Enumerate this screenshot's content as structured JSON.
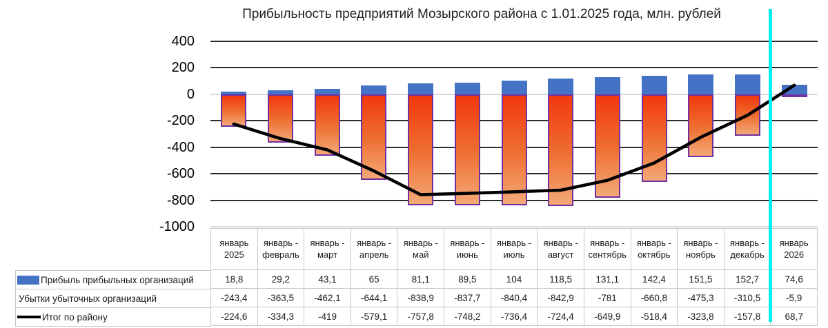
{
  "chart_data": {
    "type": "bar",
    "title": "Прибыльность предприятий Мозырского района с 1.01.2025 года, млн. рублей",
    "categories": [
      "январь 2025",
      "январь - февраль",
      "январь - март",
      "январь - апрель",
      "январь - май",
      "январь - июнь",
      "январь - июль",
      "январь - август",
      "январь - сентябрь",
      "январь - октябрь",
      "январь - ноябрь",
      "январь - декабрь",
      "январь 2026"
    ],
    "series": [
      {
        "name": "Прибыль прибыльных организаций",
        "type": "bar",
        "color": "#4472C4",
        "values": [
          18.8,
          29.2,
          43.1,
          65,
          81.1,
          89.5,
          104,
          118.5,
          131.1,
          142.4,
          151.5,
          152.7,
          74.6
        ]
      },
      {
        "name": "Убытки убыточных организаций",
        "type": "bar",
        "gradient_top": "#F2380C",
        "gradient_bottom": "#F3A877",
        "border_color": "#7030A0",
        "values": [
          -243.4,
          -363.5,
          -462.1,
          -644.1,
          -838.9,
          -837.7,
          -840.4,
          -842.9,
          -781,
          -660.8,
          -475.3,
          -310.5,
          -5.9
        ]
      },
      {
        "name": "Итог по району",
        "type": "line",
        "color": "#000000",
        "values": [
          -224.6,
          -334.3,
          -419,
          -579.1,
          -757.8,
          -748.2,
          -736.4,
          -724.4,
          -649.9,
          -518.4,
          -323.8,
          -157.8,
          68.7
        ]
      }
    ],
    "y_axis": {
      "max": 400,
      "min": -1000,
      "ticks": [
        400,
        200,
        0,
        -200,
        -400,
        -600,
        -800,
        -1000
      ]
    },
    "grid": "on",
    "gridline_color": "#2b2b2b",
    "zero_line_color": "#d9d9d9",
    "legend_position": "table-left",
    "decimal_separator": ",",
    "divider_line": {
      "color": "#00F0F0",
      "position": "before januar 2026 column",
      "after_category_index": 11
    }
  }
}
